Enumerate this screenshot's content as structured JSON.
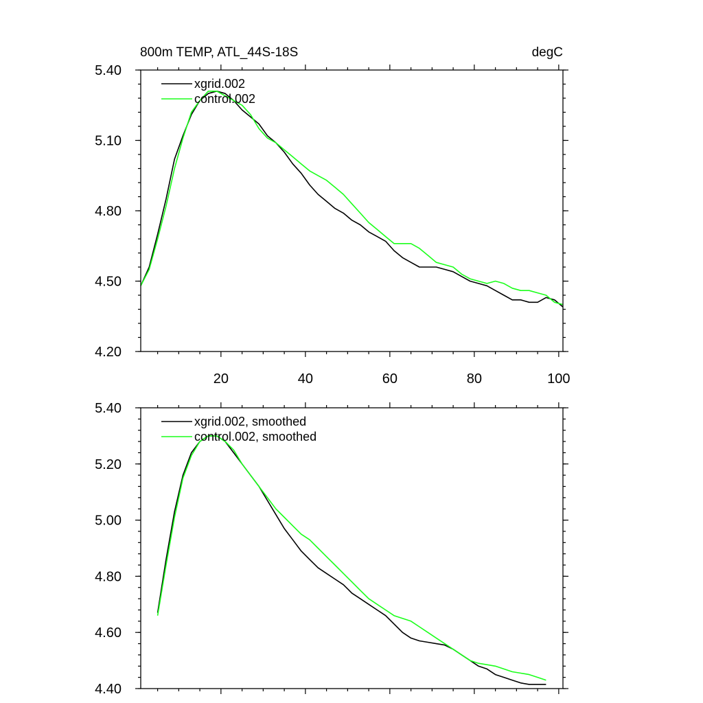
{
  "colors": {
    "series1": "#000000",
    "series2": "#1aff1a",
    "axis": "#000000",
    "background": "#ffffff"
  },
  "chart_data": [
    {
      "type": "line",
      "title": "800m TEMP, ATL_44S-18S",
      "units": "degC",
      "xlabel": "",
      "ylabel": "",
      "xlim": [
        1,
        101
      ],
      "ylim": [
        4.2,
        5.4
      ],
      "xticks": [
        20,
        40,
        60,
        80,
        100
      ],
      "xtick_labels": [
        "20",
        "40",
        "60",
        "80",
        "100"
      ],
      "yticks": [
        4.2,
        4.5,
        4.8,
        5.1,
        5.4
      ],
      "ytick_labels": [
        "4.20",
        "4.50",
        "4.80",
        "5.10",
        "5.40"
      ],
      "grid": false,
      "legend_position": "top-left",
      "series": [
        {
          "name": "xgrid.002",
          "color": "#000000",
          "x": [
            1,
            3,
            5,
            7,
            9,
            11,
            13,
            15,
            17,
            19,
            21,
            23,
            25,
            27,
            29,
            31,
            33,
            35,
            37,
            39,
            41,
            43,
            45,
            47,
            49,
            51,
            53,
            55,
            57,
            59,
            61,
            63,
            65,
            67,
            69,
            71,
            73,
            75,
            77,
            79,
            81,
            83,
            85,
            87,
            89,
            91,
            93,
            95,
            97,
            99,
            101
          ],
          "y": [
            4.48,
            4.56,
            4.7,
            4.85,
            5.02,
            5.12,
            5.21,
            5.27,
            5.3,
            5.31,
            5.3,
            5.27,
            5.23,
            5.2,
            5.17,
            5.12,
            5.09,
            5.05,
            5.0,
            4.96,
            4.91,
            4.87,
            4.84,
            4.81,
            4.79,
            4.76,
            4.74,
            4.71,
            4.69,
            4.67,
            4.63,
            4.6,
            4.58,
            4.56,
            4.56,
            4.56,
            4.55,
            4.54,
            4.52,
            4.5,
            4.49,
            4.48,
            4.46,
            4.44,
            4.42,
            4.42,
            4.41,
            4.41,
            4.43,
            4.42,
            4.39
          ]
        },
        {
          "name": "control.002",
          "color": "#1aff1a",
          "x": [
            1,
            3,
            5,
            7,
            9,
            11,
            13,
            15,
            17,
            19,
            21,
            23,
            25,
            27,
            29,
            31,
            33,
            35,
            37,
            39,
            41,
            43,
            45,
            47,
            49,
            51,
            53,
            55,
            57,
            59,
            61,
            63,
            65,
            67,
            69,
            71,
            73,
            75,
            77,
            79,
            81,
            83,
            85,
            87,
            89,
            91,
            93,
            95,
            97,
            99,
            101
          ],
          "y": [
            4.48,
            4.55,
            4.68,
            4.82,
            4.98,
            5.11,
            5.22,
            5.27,
            5.31,
            5.31,
            5.29,
            5.27,
            5.25,
            5.21,
            5.15,
            5.11,
            5.09,
            5.06,
            5.03,
            5.0,
            4.97,
            4.95,
            4.93,
            4.9,
            4.87,
            4.83,
            4.79,
            4.75,
            4.72,
            4.69,
            4.66,
            4.66,
            4.66,
            4.64,
            4.61,
            4.58,
            4.57,
            4.56,
            4.53,
            4.51,
            4.5,
            4.49,
            4.5,
            4.49,
            4.47,
            4.46,
            4.46,
            4.45,
            4.44,
            4.41,
            4.4
          ]
        }
      ]
    },
    {
      "type": "line",
      "title": "",
      "xlabel": "",
      "ylabel": "",
      "xlim": [
        1,
        101
      ],
      "ylim": [
        4.4,
        5.4
      ],
      "xticks": [
        20,
        40,
        60,
        80,
        100
      ],
      "yticks": [
        4.4,
        4.6,
        4.8,
        5.0,
        5.2,
        5.4
      ],
      "ytick_labels": [
        "4.40",
        "4.60",
        "4.80",
        "5.00",
        "5.20",
        "5.40"
      ],
      "grid": false,
      "legend_position": "top-left",
      "series": [
        {
          "name": "xgrid.002, smoothed",
          "color": "#000000",
          "x": [
            5,
            7,
            9,
            11,
            13,
            15,
            17,
            19,
            21,
            23,
            25,
            27,
            29,
            31,
            33,
            35,
            37,
            39,
            41,
            43,
            45,
            47,
            49,
            51,
            53,
            55,
            57,
            59,
            61,
            63,
            65,
            67,
            69,
            71,
            73,
            75,
            77,
            79,
            81,
            83,
            85,
            87,
            89,
            91,
            93,
            95,
            97
          ],
          "y": [
            4.67,
            4.86,
            5.03,
            5.16,
            5.24,
            5.28,
            5.3,
            5.3,
            5.28,
            5.24,
            5.2,
            5.16,
            5.12,
            5.07,
            5.02,
            4.97,
            4.93,
            4.89,
            4.86,
            4.83,
            4.81,
            4.79,
            4.77,
            4.74,
            4.72,
            4.7,
            4.68,
            4.66,
            4.63,
            4.6,
            4.58,
            4.57,
            4.565,
            4.56,
            4.555,
            4.54,
            4.52,
            4.5,
            4.48,
            4.47,
            4.45,
            4.44,
            4.43,
            4.42,
            4.415,
            4.415,
            4.415
          ]
        },
        {
          "name": "control.002, smoothed",
          "color": "#1aff1a",
          "x": [
            5,
            7,
            9,
            11,
            13,
            15,
            17,
            19,
            21,
            23,
            25,
            27,
            29,
            31,
            33,
            35,
            37,
            39,
            41,
            43,
            45,
            47,
            49,
            51,
            53,
            55,
            57,
            59,
            61,
            63,
            65,
            67,
            69,
            71,
            73,
            75,
            77,
            79,
            81,
            83,
            85,
            87,
            89,
            91,
            93,
            95,
            97
          ],
          "y": [
            4.66,
            4.84,
            5.01,
            5.15,
            5.23,
            5.28,
            5.3,
            5.3,
            5.28,
            5.25,
            5.2,
            5.16,
            5.12,
            5.08,
            5.04,
            5.01,
            4.98,
            4.95,
            4.93,
            4.9,
            4.87,
            4.84,
            4.81,
            4.78,
            4.75,
            4.72,
            4.7,
            4.68,
            4.66,
            4.65,
            4.64,
            4.62,
            4.6,
            4.58,
            4.56,
            4.54,
            4.52,
            4.5,
            4.49,
            4.485,
            4.48,
            4.47,
            4.46,
            4.455,
            4.45,
            4.44,
            4.43
          ]
        }
      ]
    }
  ]
}
